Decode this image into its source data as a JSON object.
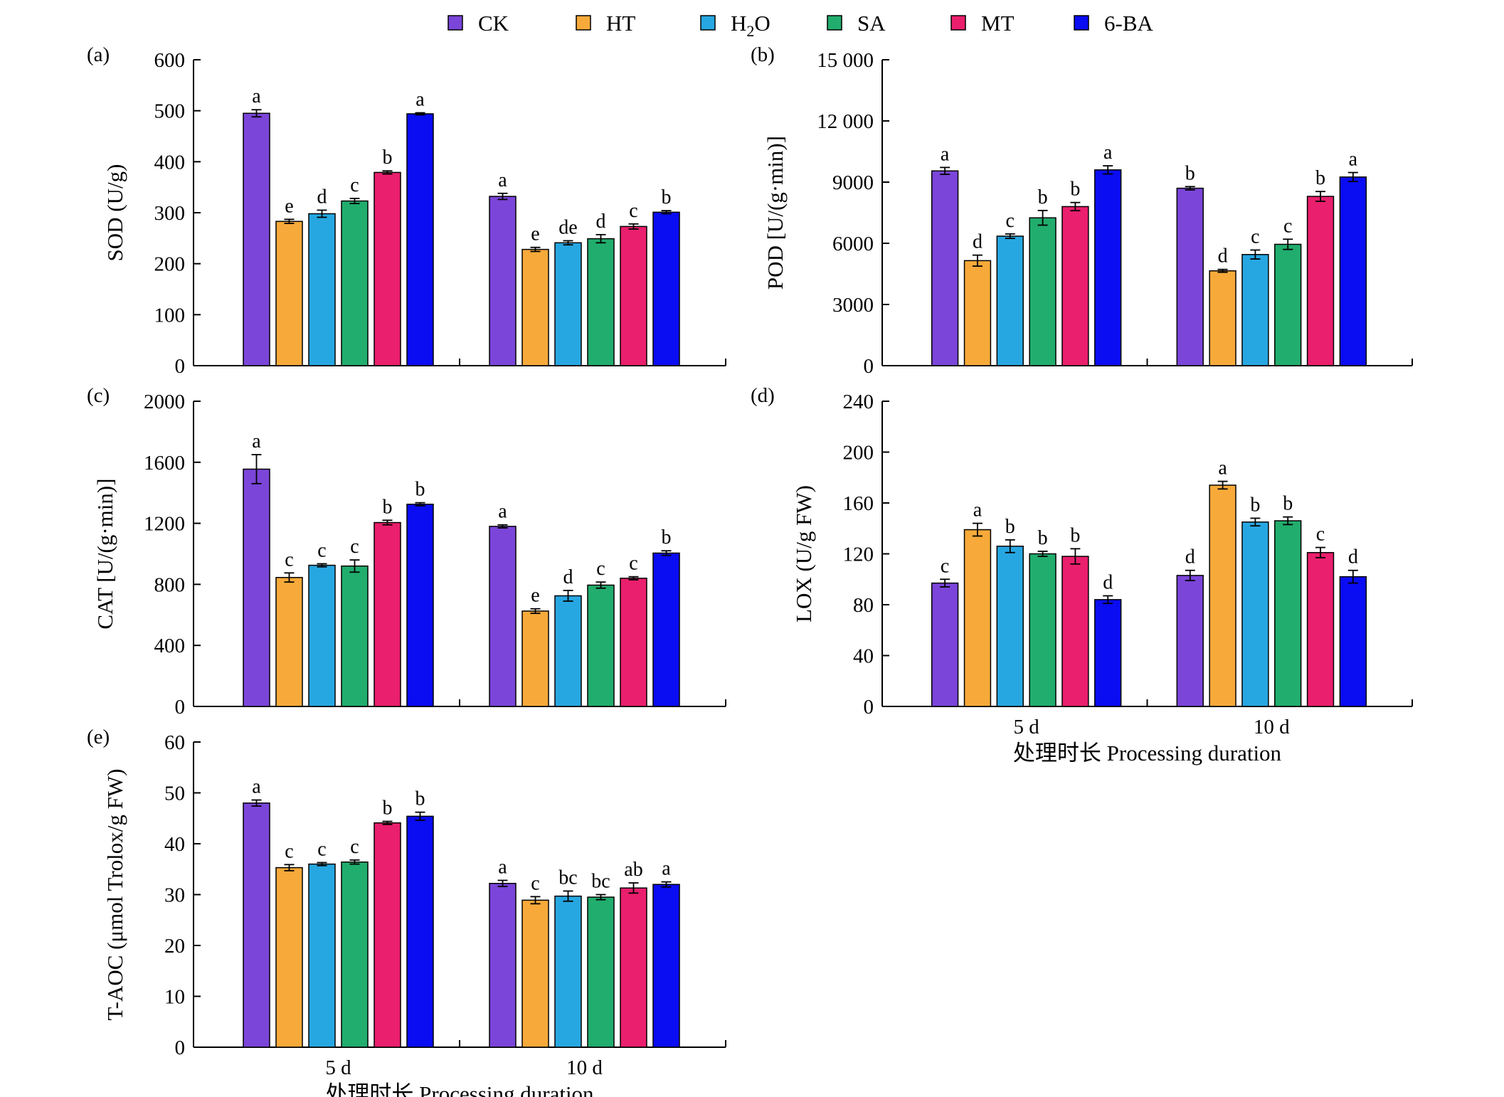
{
  "legend": [
    {
      "label": "CK",
      "color": "#7b45d9"
    },
    {
      "label": "HT",
      "color": "#f7aa3a"
    },
    {
      "label": "H2O",
      "color": "#27a7e2"
    },
    {
      "label": "SA",
      "color": "#21ad6d"
    },
    {
      "label": "MT",
      "color": "#ea1f6d"
    },
    {
      "label": "6-BA",
      "color": "#0a0cf2"
    }
  ],
  "chart_data": [
    {
      "id": "a",
      "tag": "(a)",
      "type": "bar",
      "ylabel": "SOD (U/g)",
      "xlabel": "",
      "categories": [
        "5 d",
        "10 d"
      ],
      "show_x_ticks": false,
      "ylim": [
        0,
        600
      ],
      "yticks": [
        {
          "v": 0,
          "t": "0"
        },
        {
          "v": 100,
          "t": "100"
        },
        {
          "v": 200,
          "t": "200"
        },
        {
          "v": 300,
          "t": "300"
        },
        {
          "v": 400,
          "t": "400"
        },
        {
          "v": 500,
          "t": "500"
        },
        {
          "v": 600,
          "t": "600"
        }
      ],
      "series": [
        {
          "name": "CK",
          "values": [
            495,
            332
          ],
          "errors": [
            7,
            6
          ],
          "labels": [
            "a",
            "a"
          ]
        },
        {
          "name": "HT",
          "values": [
            283,
            228
          ],
          "errors": [
            4,
            4
          ],
          "labels": [
            "e",
            "e"
          ]
        },
        {
          "name": "H2O",
          "values": [
            298,
            241
          ],
          "errors": [
            7,
            4
          ],
          "labels": [
            "d",
            "de"
          ]
        },
        {
          "name": "SA",
          "values": [
            323,
            249
          ],
          "errors": [
            5,
            8
          ],
          "labels": [
            "c",
            "d"
          ]
        },
        {
          "name": "MT",
          "values": [
            379,
            273
          ],
          "errors": [
            3,
            5
          ],
          "labels": [
            "b",
            "c"
          ]
        },
        {
          "name": "6-BA",
          "values": [
            494,
            301
          ],
          "errors": [
            2,
            3
          ],
          "labels": [
            "a",
            "b"
          ]
        }
      ]
    },
    {
      "id": "b",
      "tag": "(b)",
      "type": "bar",
      "ylabel": "POD [U/(g·min)]",
      "xlabel": "",
      "categories": [
        "5 d",
        "10 d"
      ],
      "show_x_ticks": false,
      "ylim": [
        0,
        15000
      ],
      "yticks": [
        {
          "v": 0,
          "t": "0"
        },
        {
          "v": 3000,
          "t": "3000"
        },
        {
          "v": 6000,
          "t": "6000"
        },
        {
          "v": 9000,
          "t": "9000"
        },
        {
          "v": 12000,
          "t": "12 000"
        },
        {
          "v": 15000,
          "t": "15 000"
        }
      ],
      "series": [
        {
          "name": "CK",
          "values": [
            9550,
            8700
          ],
          "errors": [
            170,
            80
          ],
          "labels": [
            "a",
            "b"
          ]
        },
        {
          "name": "HT",
          "values": [
            5150,
            4650
          ],
          "errors": [
            270,
            70
          ],
          "labels": [
            "d",
            "d"
          ]
        },
        {
          "name": "H2O",
          "values": [
            6350,
            5450
          ],
          "errors": [
            110,
            220
          ],
          "labels": [
            "c",
            "c"
          ]
        },
        {
          "name": "SA",
          "values": [
            7250,
            5950
          ],
          "errors": [
            360,
            250
          ],
          "labels": [
            "b",
            "c"
          ]
        },
        {
          "name": "MT",
          "values": [
            7800,
            8300
          ],
          "errors": [
            200,
            240
          ],
          "labels": [
            "b",
            "b"
          ]
        },
        {
          "name": "6-BA",
          "values": [
            9600,
            9250
          ],
          "errors": [
            200,
            220
          ],
          "labels": [
            "a",
            "a"
          ]
        }
      ]
    },
    {
      "id": "c",
      "tag": "(c)",
      "type": "bar",
      "ylabel": "CAT [U/(g·min)]",
      "xlabel": "",
      "categories": [
        "5 d",
        "10 d"
      ],
      "show_x_ticks": false,
      "ylim": [
        0,
        2000
      ],
      "yticks": [
        {
          "v": 0,
          "t": "0"
        },
        {
          "v": 400,
          "t": "400"
        },
        {
          "v": 800,
          "t": "800"
        },
        {
          "v": 1200,
          "t": "1200"
        },
        {
          "v": 1600,
          "t": "1600"
        },
        {
          "v": 2000,
          "t": "2000"
        }
      ],
      "series": [
        {
          "name": "CK",
          "values": [
            1555,
            1180
          ],
          "errors": [
            95,
            10
          ],
          "labels": [
            "a",
            "a"
          ]
        },
        {
          "name": "HT",
          "values": [
            845,
            625
          ],
          "errors": [
            30,
            15
          ],
          "labels": [
            "c",
            "e"
          ]
        },
        {
          "name": "H2O",
          "values": [
            925,
            725
          ],
          "errors": [
            10,
            35
          ],
          "labels": [
            "c",
            "d"
          ]
        },
        {
          "name": "SA",
          "values": [
            920,
            795
          ],
          "errors": [
            40,
            20
          ],
          "labels": [
            "c",
            "c"
          ]
        },
        {
          "name": "MT",
          "values": [
            1205,
            840
          ],
          "errors": [
            15,
            10
          ],
          "labels": [
            "b",
            "c"
          ]
        },
        {
          "name": "6-BA",
          "values": [
            1325,
            1005
          ],
          "errors": [
            10,
            15
          ],
          "labels": [
            "b",
            "b"
          ]
        }
      ]
    },
    {
      "id": "d",
      "tag": "(d)",
      "type": "bar",
      "ylabel": "LOX (U/g FW)",
      "xlabel": "处理时长 Processing duration",
      "categories": [
        "5 d",
        "10 d"
      ],
      "show_x_ticks": true,
      "ylim": [
        0,
        240
      ],
      "yticks": [
        {
          "v": 0,
          "t": "0"
        },
        {
          "v": 40,
          "t": "40"
        },
        {
          "v": 80,
          "t": "80"
        },
        {
          "v": 120,
          "t": "120"
        },
        {
          "v": 160,
          "t": "160"
        },
        {
          "v": 200,
          "t": "200"
        },
        {
          "v": 240,
          "t": "240"
        }
      ],
      "series": [
        {
          "name": "CK",
          "values": [
            97,
            103
          ],
          "errors": [
            3,
            4
          ],
          "labels": [
            "c",
            "d"
          ]
        },
        {
          "name": "HT",
          "values": [
            139,
            174
          ],
          "errors": [
            5,
            3
          ],
          "labels": [
            "a",
            "a"
          ]
        },
        {
          "name": "H2O",
          "values": [
            126,
            145
          ],
          "errors": [
            5,
            3
          ],
          "labels": [
            "b",
            "b"
          ]
        },
        {
          "name": "SA",
          "values": [
            120,
            146
          ],
          "errors": [
            2,
            3
          ],
          "labels": [
            "b",
            "b"
          ]
        },
        {
          "name": "MT",
          "values": [
            118,
            121
          ],
          "errors": [
            6,
            4
          ],
          "labels": [
            "b",
            "c"
          ]
        },
        {
          "name": "6-BA",
          "values": [
            84,
            102
          ],
          "errors": [
            3,
            5
          ],
          "labels": [
            "d",
            "d"
          ]
        }
      ]
    },
    {
      "id": "e",
      "tag": "(e)",
      "type": "bar",
      "ylabel": "T-AOC (μmol Trolox/g FW)",
      "xlabel": "处理时长 Processing duration",
      "categories": [
        "5 d",
        "10 d"
      ],
      "show_x_ticks": true,
      "ylim": [
        0,
        60
      ],
      "yticks": [
        {
          "v": 0,
          "t": "0"
        },
        {
          "v": 10,
          "t": "10"
        },
        {
          "v": 20,
          "t": "20"
        },
        {
          "v": 30,
          "t": "30"
        },
        {
          "v": 40,
          "t": "40"
        },
        {
          "v": 50,
          "t": "50"
        },
        {
          "v": 60,
          "t": "60"
        }
      ],
      "series": [
        {
          "name": "CK",
          "values": [
            48.0,
            32.2
          ],
          "errors": [
            0.6,
            0.6
          ],
          "labels": [
            "a",
            "a"
          ]
        },
        {
          "name": "HT",
          "values": [
            35.3,
            28.9
          ],
          "errors": [
            0.6,
            0.7
          ],
          "labels": [
            "c",
            "c"
          ]
        },
        {
          "name": "H2O",
          "values": [
            36.0,
            29.7
          ],
          "errors": [
            0.3,
            1.0
          ],
          "labels": [
            "c",
            "bc"
          ]
        },
        {
          "name": "SA",
          "values": [
            36.4,
            29.5
          ],
          "errors": [
            0.4,
            0.5
          ],
          "labels": [
            "c",
            "bc"
          ]
        },
        {
          "name": "MT",
          "values": [
            44.1,
            31.3
          ],
          "errors": [
            0.3,
            1.0
          ],
          "labels": [
            "b",
            "ab"
          ]
        },
        {
          "name": "6-BA",
          "values": [
            45.4,
            32.0
          ],
          "errors": [
            0.8,
            0.5
          ],
          "labels": [
            "b",
            "a"
          ]
        }
      ]
    }
  ]
}
